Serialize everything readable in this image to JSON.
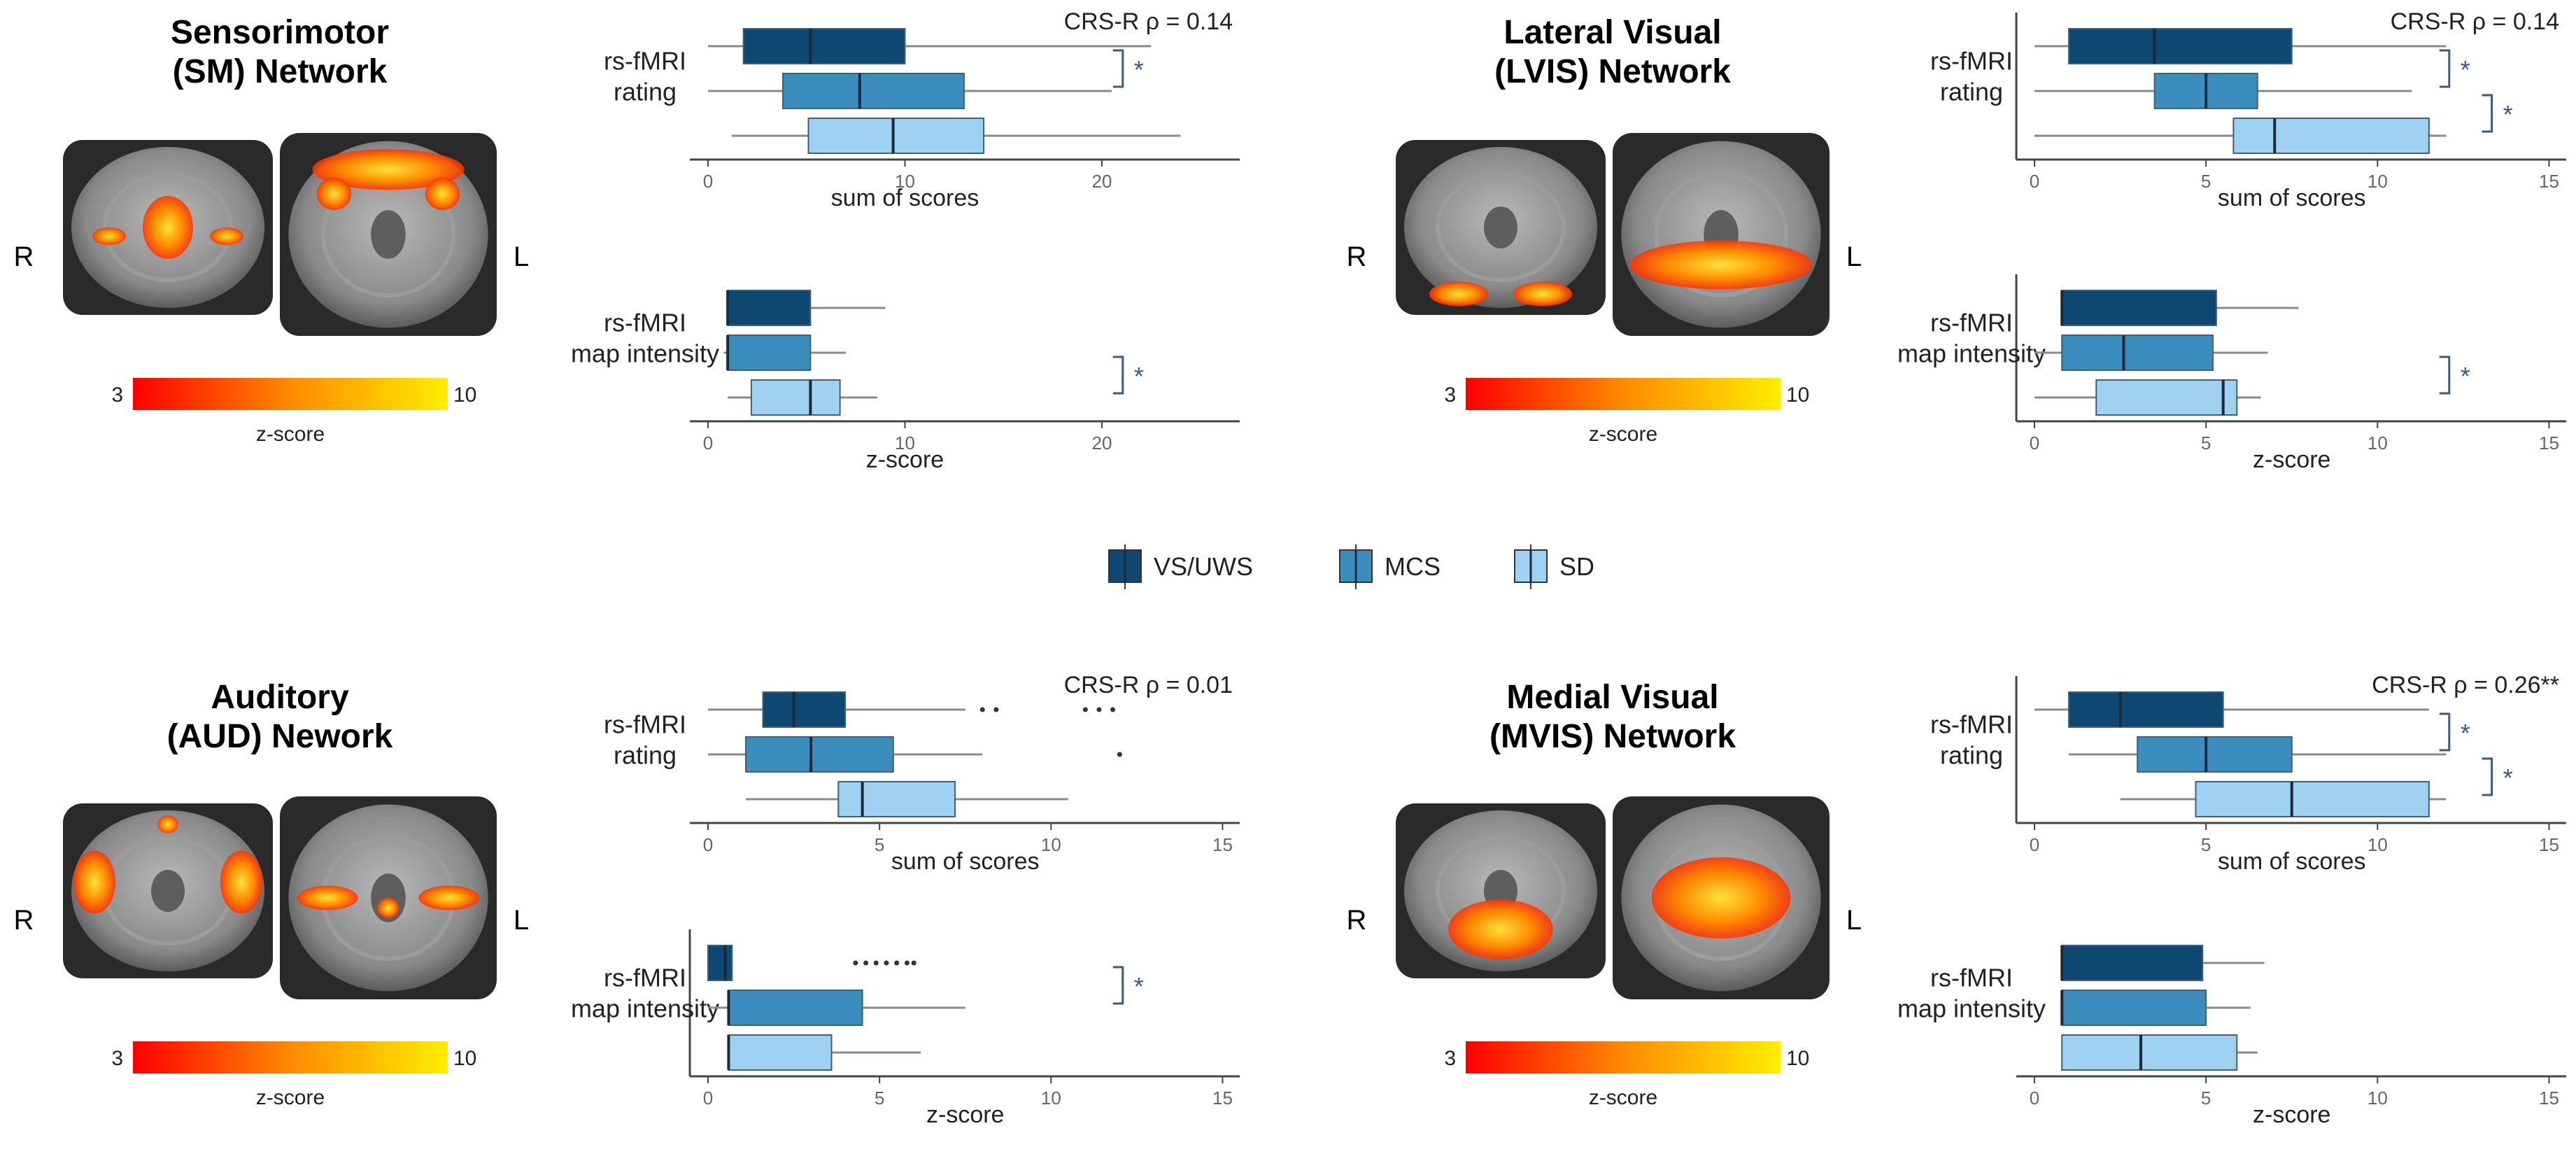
{
  "colors": {
    "VS/UWS": "#0e4772",
    "MCS": "#3a8dbd",
    "SD": "#9fd2f2",
    "bracket": "#3b5b7e",
    "axis": "#444444",
    "whisker": "#8a8a8a"
  },
  "legend": {
    "items": [
      "VS/UWS",
      "MCS",
      "SD"
    ]
  },
  "chart_data": [
    {
      "type": "box",
      "panel": "SM",
      "network_title": "Sensorimotor\n(SM) Network",
      "orientation": {
        "right": "R",
        "left": "L"
      },
      "colorbar": {
        "min": "3",
        "max": "10",
        "label": "z-score"
      },
      "charts": [
        {
          "ylabel": "rs-fMRI\nrating",
          "xlabel": "sum of scores",
          "xlim": [
            0,
            27
          ],
          "xticks": [
            0,
            10,
            20
          ],
          "annotation": "CRS-R  ρ = 0.14",
          "has_axes": false,
          "groups": [
            {
              "name": "VS/UWS",
              "min": 0,
              "q1": 1.8,
              "median": 5.2,
              "q3": 10,
              "max": 22.5,
              "outliers": []
            },
            {
              "name": "MCS",
              "min": 0,
              "q1": 3.8,
              "median": 7.7,
              "q3": 13,
              "max": 20.5,
              "outliers": []
            },
            {
              "name": "SD",
              "min": 1.2,
              "q1": 5.1,
              "median": 9.4,
              "q3": 14,
              "max": 24,
              "outliers": []
            }
          ],
          "brackets": [
            {
              "from": 0,
              "to": 1,
              "label": "*"
            }
          ]
        },
        {
          "ylabel": "rs-fMRI\nmap intensity",
          "xlabel": "z-score",
          "xlim": [
            0,
            27
          ],
          "xticks": [
            0,
            10,
            20
          ],
          "annotation": "",
          "has_axes": false,
          "groups": [
            {
              "name": "VS/UWS",
              "min": 1,
              "q1": 1,
              "median": 1,
              "q3": 5.2,
              "max": 9,
              "outliers": []
            },
            {
              "name": "MCS",
              "min": 0.8,
              "q1": 1,
              "median": 1,
              "q3": 5.2,
              "max": 7,
              "outliers": []
            },
            {
              "name": "SD",
              "min": 1,
              "q1": 2.2,
              "median": 5.2,
              "q3": 6.7,
              "max": 8.6,
              "outliers": []
            }
          ],
          "brackets": [
            {
              "from": 1,
              "to": 2,
              "label": "*"
            }
          ]
        }
      ]
    },
    {
      "type": "box",
      "panel": "LVIS",
      "network_title": "Lateral Visual\n(LVIS) Network",
      "orientation": {
        "right": "R",
        "left": "L"
      },
      "colorbar": {
        "min": "3",
        "max": "10",
        "label": "z-score"
      },
      "charts": [
        {
          "ylabel": "rs-fMRI\nrating",
          "xlabel": "sum of scores",
          "xlim": [
            0,
            15.5
          ],
          "xticks": [
            0,
            5,
            10,
            15
          ],
          "annotation": "CRS-R  ρ = 0.14",
          "has_axes": true,
          "groups": [
            {
              "name": "VS/UWS",
              "min": 0,
              "q1": 1,
              "median": 3.5,
              "q3": 7.5,
              "max": 12,
              "outliers": []
            },
            {
              "name": "MCS",
              "min": 0,
              "q1": 3.5,
              "median": 5,
              "q3": 6.5,
              "max": 11,
              "outliers": []
            },
            {
              "name": "SD",
              "min": 0,
              "q1": 5.8,
              "median": 7,
              "q3": 11.5,
              "max": 12,
              "outliers": []
            }
          ],
          "brackets": [
            {
              "from": 0,
              "to": 1,
              "label": "*"
            },
            {
              "from": 1,
              "to": 2,
              "label": "*"
            }
          ]
        },
        {
          "ylabel": "rs-fMRI\nmap intensity",
          "xlabel": "z-score",
          "xlim": [
            0,
            15.5
          ],
          "xticks": [
            0,
            5,
            10,
            15
          ],
          "annotation": "",
          "has_axes": true,
          "groups": [
            {
              "name": "VS/UWS",
              "min": 0.8,
              "q1": 0.8,
              "median": 0.8,
              "q3": 5.3,
              "max": 7.7,
              "outliers": []
            },
            {
              "name": "MCS",
              "min": 0,
              "q1": 0.8,
              "median": 2.6,
              "q3": 5.2,
              "max": 6.8,
              "outliers": []
            },
            {
              "name": "SD",
              "min": 0,
              "q1": 1.8,
              "median": 5.5,
              "q3": 5.9,
              "max": 6.6,
              "outliers": []
            }
          ],
          "brackets": [
            {
              "from": 1,
              "to": 2,
              "label": "*"
            }
          ]
        }
      ]
    },
    {
      "type": "box",
      "panel": "AUD",
      "network_title": "Auditory\n(AUD) Nework",
      "orientation": {
        "right": "R",
        "left": "L"
      },
      "colorbar": {
        "min": "3",
        "max": "10",
        "label": "z-score"
      },
      "charts": [
        {
          "ylabel": "rs-fMRI\nrating",
          "xlabel": "sum of scores",
          "xlim": [
            0,
            15.5
          ],
          "xticks": [
            0,
            5,
            10,
            15
          ],
          "annotation": "CRS-R  ρ = 0.01",
          "has_axes": false,
          "groups": [
            {
              "name": "VS/UWS",
              "min": 0,
              "q1": 1.6,
              "median": 2.5,
              "q3": 4,
              "max": 7.5,
              "outliers": [
                8,
                8.4,
                11,
                11.4,
                11.8
              ]
            },
            {
              "name": "MCS",
              "min": 0,
              "q1": 1.1,
              "median": 3,
              "q3": 5.4,
              "max": 8,
              "outliers": [
                12
              ]
            },
            {
              "name": "SD",
              "min": 1.1,
              "q1": 3.8,
              "median": 4.5,
              "q3": 7.2,
              "max": 10.5,
              "outliers": []
            }
          ],
          "brackets": []
        },
        {
          "ylabel": "rs-fMRI\nmap intensity",
          "xlabel": "z-score",
          "xlim": [
            0,
            15.5
          ],
          "xticks": [
            0,
            5,
            10,
            15
          ],
          "annotation": "",
          "has_axes": true,
          "groups": [
            {
              "name": "VS/UWS",
              "min": 0,
              "q1": 0,
              "median": 0.5,
              "q3": 0.7,
              "max": 0.7,
              "outliers": [
                4.3,
                4.6,
                4.9,
                5.2,
                5.5,
                5.8,
                6.0
              ]
            },
            {
              "name": "MCS",
              "min": 0,
              "q1": 0.6,
              "median": 0.6,
              "q3": 4.5,
              "max": 7.5,
              "outliers": []
            },
            {
              "name": "SD",
              "min": 0.6,
              "q1": 0.6,
              "median": 0.6,
              "q3": 3.6,
              "max": 6.2,
              "outliers": []
            }
          ],
          "brackets": [
            {
              "from": 0,
              "to": 1,
              "label": "*"
            }
          ]
        }
      ]
    },
    {
      "type": "box",
      "panel": "MVIS",
      "network_title": "Medial Visual\n(MVIS) Network",
      "orientation": {
        "right": "R",
        "left": "L"
      },
      "colorbar": {
        "min": "3",
        "max": "10",
        "label": "z-score"
      },
      "charts": [
        {
          "ylabel": "rs-fMRI\nrating",
          "xlabel": "sum of scores",
          "xlim": [
            0,
            15.5
          ],
          "xticks": [
            0,
            5,
            10,
            15
          ],
          "annotation": "CRS-R  ρ = 0.26**",
          "has_axes": true,
          "groups": [
            {
              "name": "VS/UWS",
              "min": 0,
              "q1": 1,
              "median": 2.5,
              "q3": 5.5,
              "max": 11.5,
              "outliers": []
            },
            {
              "name": "MCS",
              "min": 1,
              "q1": 3,
              "median": 5,
              "q3": 7.5,
              "max": 12,
              "outliers": []
            },
            {
              "name": "SD",
              "min": 2.5,
              "q1": 4.7,
              "median": 7.5,
              "q3": 11.5,
              "max": 12,
              "outliers": []
            }
          ],
          "brackets": [
            {
              "from": 0,
              "to": 1,
              "label": "*"
            },
            {
              "from": 1,
              "to": 2,
              "label": "*"
            }
          ]
        },
        {
          "ylabel": "rs-fMRI\nmap intensity",
          "xlabel": "z-score",
          "xlim": [
            0,
            15.5
          ],
          "xticks": [
            0,
            5,
            10,
            15
          ],
          "annotation": "",
          "has_axes": false,
          "groups": [
            {
              "name": "VS/UWS",
              "min": 0.8,
              "q1": 0.8,
              "median": 0.8,
              "q3": 4.9,
              "max": 6.7,
              "outliers": []
            },
            {
              "name": "MCS",
              "min": 0.8,
              "q1": 0.8,
              "median": 0.8,
              "q3": 5,
              "max": 6.3,
              "outliers": []
            },
            {
              "name": "SD",
              "min": 0.8,
              "q1": 0.8,
              "median": 3.1,
              "q3": 5.9,
              "max": 6.5,
              "outliers": []
            }
          ],
          "brackets": []
        }
      ]
    }
  ]
}
